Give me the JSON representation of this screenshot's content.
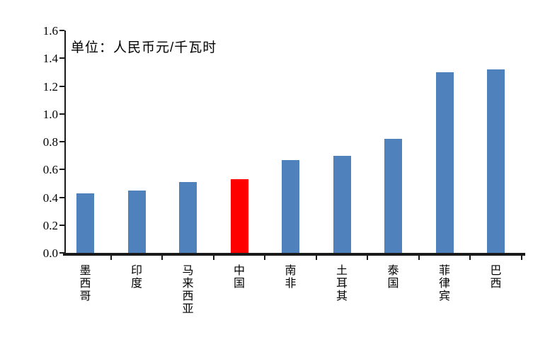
{
  "chart_data": {
    "type": "bar",
    "title": "",
    "unit_annotation": "单位：人民币元/千瓦时",
    "categories": [
      "墨西哥",
      "印度",
      "马来西亚",
      "中国",
      "南非",
      "土耳其",
      "泰国",
      "菲律宾",
      "巴西"
    ],
    "values": [
      0.43,
      0.45,
      0.51,
      0.53,
      0.67,
      0.7,
      0.82,
      1.3,
      1.32
    ],
    "highlight_category": "中国",
    "highlight_index": 3,
    "bar_color": "#4f81bd",
    "highlight_color": "#ff0000",
    "axis_color": "#1a1a1a",
    "xlabel": "",
    "ylabel": "",
    "ylim": [
      0,
      1.6
    ],
    "ytick_step": 0.2,
    "ytick_labels": [
      "0.0",
      "0.2",
      "0.4",
      "0.6",
      "0.8",
      "1.0",
      "1.2",
      "1.4",
      "1.6"
    ],
    "grid": false,
    "legend": "none",
    "x_label_orientation": "vertical"
  }
}
